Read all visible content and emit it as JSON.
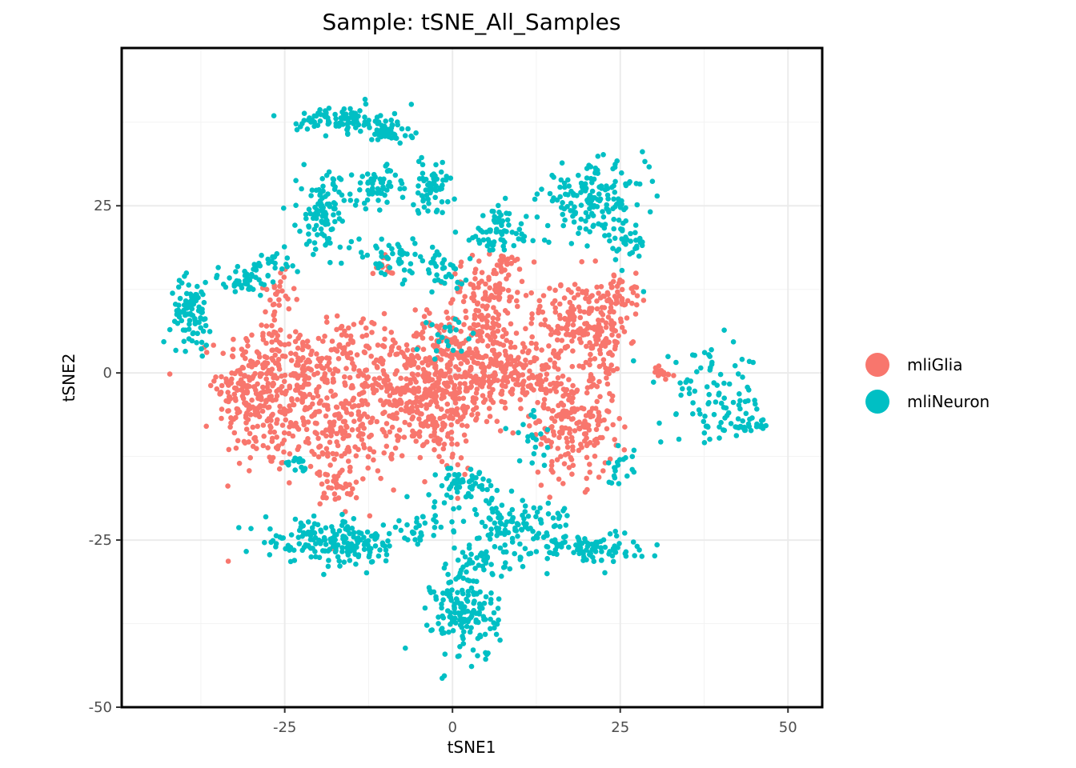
{
  "chart_data": {
    "type": "scatter",
    "title": "Sample: tSNE_All_Samples",
    "xlabel": "tSNE1",
    "ylabel": "tSNE2",
    "xlim": [
      -49.3,
      55.1
    ],
    "ylim": [
      -50,
      48.6
    ],
    "xticks": [
      -25,
      0,
      25,
      50
    ],
    "xtick_labels": [
      "-25",
      "0",
      "25",
      "50"
    ],
    "yticks": [
      -50,
      -25,
      0,
      25
    ],
    "ytick_labels": [
      "-50",
      "-25",
      "0",
      "25"
    ],
    "grid": true,
    "legend_position": "right",
    "series": [
      {
        "name": "mliGlia",
        "color": "#F8766D",
        "clusters": [
          {
            "cx": -28,
            "cy": -3,
            "sx": 3.5,
            "sy": 6,
            "n": 260
          },
          {
            "cx": -31,
            "cy": -2,
            "sx": 2,
            "sy": 3,
            "n": 60
          },
          {
            "cx": -15,
            "cy": 4,
            "sx": 2.5,
            "sy": 2.5,
            "n": 60
          },
          {
            "cx": -16,
            "cy": -7,
            "sx": 4,
            "sy": 5,
            "n": 260
          },
          {
            "cx": -22,
            "cy": 0,
            "sx": 2,
            "sy": 3,
            "n": 60
          },
          {
            "cx": -7,
            "cy": -3,
            "sx": 3,
            "sy": 4,
            "n": 140
          },
          {
            "cx": -2,
            "cy": -3,
            "sx": 3,
            "sy": 6,
            "n": 220
          },
          {
            "cx": 4,
            "cy": 2,
            "sx": 4,
            "sy": 4,
            "n": 280
          },
          {
            "cx": 5,
            "cy": 12,
            "sx": 3,
            "sy": 2.5,
            "n": 90
          },
          {
            "cx": 12,
            "cy": 0,
            "sx": 3,
            "sy": 3,
            "n": 120
          },
          {
            "cx": 18,
            "cy": -8,
            "sx": 3,
            "sy": 4,
            "n": 180
          },
          {
            "cx": 19,
            "cy": 8,
            "sx": 3,
            "sy": 3,
            "n": 150
          },
          {
            "cx": 23,
            "cy": 3,
            "sx": 1.5,
            "sy": 5,
            "n": 70
          },
          {
            "cx": 25,
            "cy": 12,
            "sx": 1.5,
            "sy": 1.5,
            "n": 40
          },
          {
            "cx": -26,
            "cy": 12,
            "sx": 1.2,
            "sy": 2,
            "n": 25
          },
          {
            "cx": -10,
            "cy": 16,
            "sx": 1,
            "sy": 1,
            "n": 12
          },
          {
            "cx": -17,
            "cy": -17,
            "sx": 1.5,
            "sy": 1,
            "n": 25
          },
          {
            "cx": 31,
            "cy": 0,
            "sx": 1,
            "sy": 0.6,
            "n": 15
          },
          {
            "cx": 8,
            "cy": 16,
            "sx": 1.5,
            "sy": 1,
            "n": 20
          }
        ]
      },
      {
        "name": "mliNeuron",
        "color": "#00BFC4",
        "clusters": [
          {
            "cx": -39,
            "cy": 9,
            "sx": 1.5,
            "sy": 2.5,
            "n": 90
          },
          {
            "cx": -31,
            "cy": 14,
            "sx": 2.5,
            "sy": 1.2,
            "n": 40
          },
          {
            "cx": -27,
            "cy": 16,
            "sx": 1.5,
            "sy": 1,
            "n": 25
          },
          {
            "cx": -17,
            "cy": 38,
            "sx": 3,
            "sy": 1,
            "n": 90
          },
          {
            "cx": -10,
            "cy": 36,
            "sx": 2,
            "sy": 1,
            "n": 50
          },
          {
            "cx": -19,
            "cy": 24,
            "sx": 2,
            "sy": 3,
            "n": 110
          },
          {
            "cx": -11,
            "cy": 28,
            "sx": 2,
            "sy": 1.5,
            "n": 50
          },
          {
            "cx": -9,
            "cy": 17,
            "sx": 3,
            "sy": 1.5,
            "n": 50
          },
          {
            "cx": -3,
            "cy": 28,
            "sx": 2,
            "sy": 2,
            "n": 60
          },
          {
            "cx": 7,
            "cy": 21,
            "sx": 3,
            "sy": 2,
            "n": 70
          },
          {
            "cx": 21,
            "cy": 26,
            "sx": 4,
            "sy": 2.5,
            "n": 160
          },
          {
            "cx": 26,
            "cy": 19,
            "sx": 1.5,
            "sy": 2,
            "n": 30
          },
          {
            "cx": 39,
            "cy": -4,
            "sx": 4,
            "sy": 3.5,
            "n": 90
          },
          {
            "cx": 44,
            "cy": -8,
            "sx": 1.5,
            "sy": 0.6,
            "n": 25
          },
          {
            "cx": -20,
            "cy": -25,
            "sx": 4,
            "sy": 1.5,
            "n": 110
          },
          {
            "cx": -14,
            "cy": -26,
            "sx": 3,
            "sy": 1.5,
            "n": 70
          },
          {
            "cx": -5,
            "cy": -23,
            "sx": 2,
            "sy": 1.5,
            "n": 35
          },
          {
            "cx": 2,
            "cy": -17,
            "sx": 2,
            "sy": 1.5,
            "n": 60
          },
          {
            "cx": 10,
            "cy": -23,
            "sx": 4,
            "sy": 2,
            "n": 110
          },
          {
            "cx": 20,
            "cy": -26,
            "sx": 4,
            "sy": 1.2,
            "n": 90
          },
          {
            "cx": 2,
            "cy": -36,
            "sx": 2.5,
            "sy": 3.5,
            "n": 160
          },
          {
            "cx": 4,
            "cy": -28,
            "sx": 2,
            "sy": 1.2,
            "n": 40
          },
          {
            "cx": -23,
            "cy": -14,
            "sx": 1,
            "sy": 0.8,
            "n": 15
          },
          {
            "cx": 25,
            "cy": -14,
            "sx": 1,
            "sy": 1.5,
            "n": 20
          },
          {
            "cx": -1,
            "cy": 15,
            "sx": 2,
            "sy": 1.5,
            "n": 30
          },
          {
            "cx": 12,
            "cy": -10,
            "sx": 2,
            "sy": 2,
            "n": 20
          },
          {
            "cx": 0,
            "cy": 6,
            "sx": 2,
            "sy": 2,
            "n": 20
          }
        ]
      }
    ]
  }
}
